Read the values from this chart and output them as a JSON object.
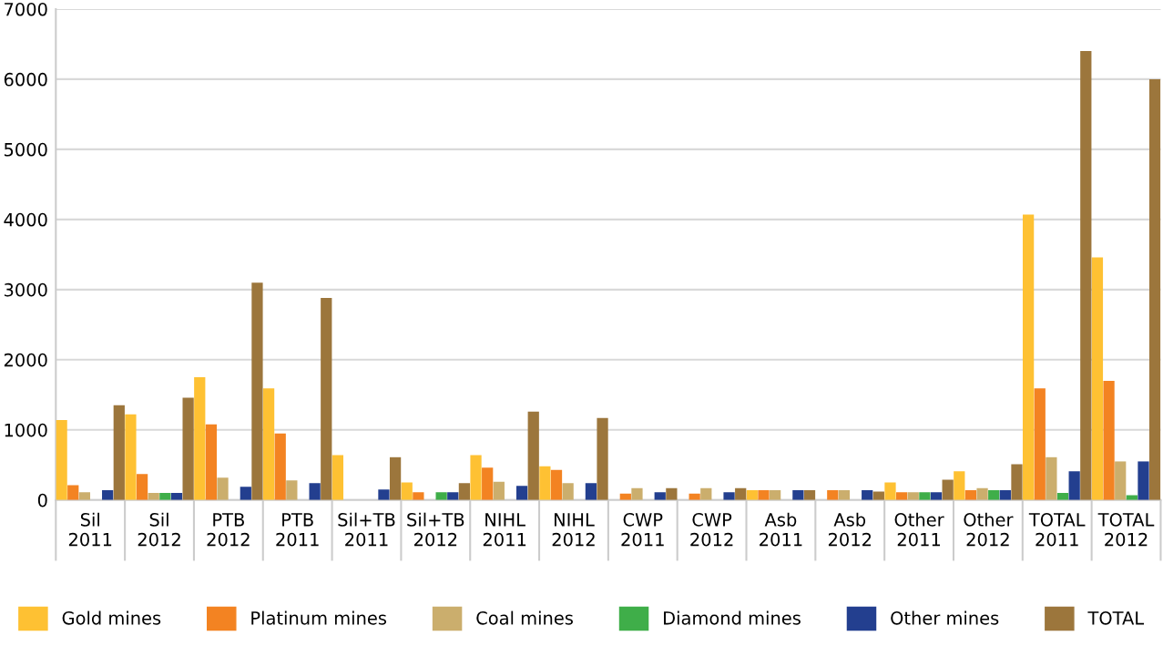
{
  "chart_data": {
    "type": "bar",
    "categories": [
      "Sil\n2011",
      "Sil\n2012",
      "PTB\n2012",
      "PTB\n2011",
      "Sil+TB\n2011",
      "Sil+TB\n2012",
      "NIHL\n2011",
      "NIHL\n2012",
      "CWP\n2011",
      "CWP\n2012",
      "Asb\n2011",
      "Asb\n2012",
      "Other\n2011",
      "Other\n2012",
      "TOTAL\n2011",
      "TOTAL\n2012"
    ],
    "series": [
      {
        "name": "Gold mines",
        "color": "#fec133",
        "values": [
          1140,
          1220,
          1750,
          1590,
          640,
          250,
          640,
          480,
          0,
          0,
          140,
          0,
          250,
          410,
          4070,
          3460
        ]
      },
      {
        "name": "Platinum mines",
        "color": "#f38322",
        "values": [
          210,
          370,
          1080,
          950,
          0,
          110,
          460,
          430,
          90,
          90,
          140,
          140,
          110,
          140,
          1590,
          1700
        ]
      },
      {
        "name": "Coal mines",
        "color": "#cbae6d",
        "values": [
          110,
          100,
          320,
          280,
          0,
          0,
          260,
          240,
          170,
          170,
          140,
          140,
          110,
          170,
          610,
          550
        ]
      },
      {
        "name": "Diamond mines",
        "color": "#3fae49",
        "values": [
          0,
          100,
          0,
          0,
          0,
          110,
          0,
          0,
          0,
          0,
          0,
          0,
          110,
          140,
          100,
          70
        ]
      },
      {
        "name": "Other mines",
        "color": "#233f8f",
        "values": [
          140,
          100,
          190,
          240,
          150,
          110,
          200,
          240,
          110,
          110,
          140,
          140,
          110,
          140,
          410,
          550
        ]
      },
      {
        "name": "TOTAL",
        "color": "#9c763c",
        "values": [
          1350,
          1460,
          3100,
          2880,
          610,
          240,
          1260,
          1170,
          170,
          170,
          140,
          120,
          290,
          510,
          6400,
          6000
        ]
      }
    ],
    "ylim": [
      0,
      7000
    ],
    "yticks": [
      0,
      1000,
      2000,
      3000,
      4000,
      5000,
      6000,
      7000
    ],
    "grid": "y",
    "legend": "bottom"
  }
}
